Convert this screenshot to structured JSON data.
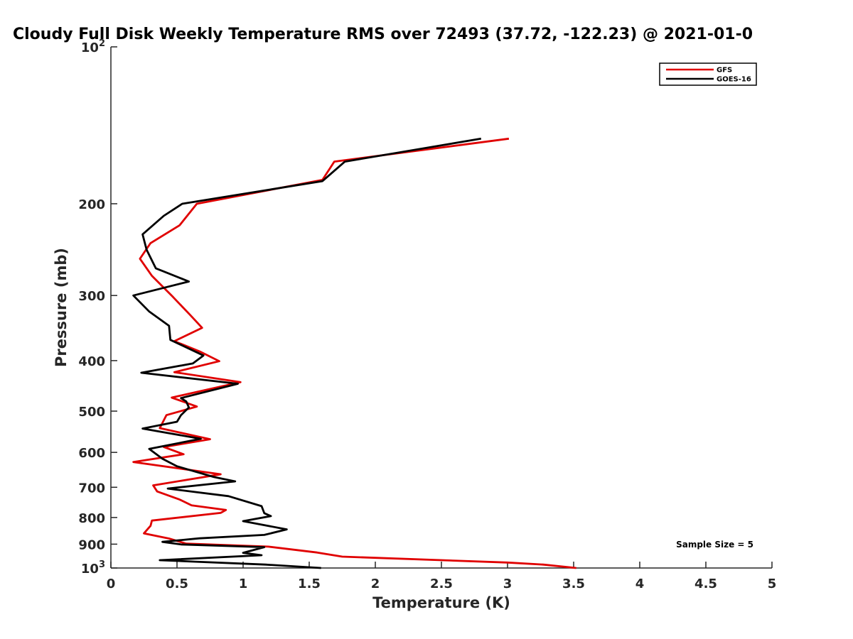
{
  "chart_data": {
    "type": "line",
    "title": "Cloudy Full Disk Weekly Temperature RMS over 72493 (37.72, -122.23) @ 2021-01-0",
    "xlabel": "Temperature (K)",
    "ylabel": "Pressure (mb)",
    "xlim": [
      0,
      5
    ],
    "ylim": [
      100,
      1000
    ],
    "y_scale": "log",
    "y_reversed": true,
    "x_ticks": [
      "0",
      "0.5",
      "1",
      "1.5",
      "2",
      "2.5",
      "3",
      "3.5",
      "4",
      "4.5",
      "5"
    ],
    "y_tick_values": [
      100,
      200,
      300,
      400,
      500,
      600,
      700,
      800,
      900,
      1000
    ],
    "y_ticks": [
      {
        "base": "10",
        "exp": "2"
      },
      {
        "base": "200",
        "exp": ""
      },
      {
        "base": "300",
        "exp": ""
      },
      {
        "base": "400",
        "exp": ""
      },
      {
        "base": "500",
        "exp": ""
      },
      {
        "base": "600",
        "exp": ""
      },
      {
        "base": "700",
        "exp": ""
      },
      {
        "base": "800",
        "exp": ""
      },
      {
        "base": "900",
        "exp": ""
      },
      {
        "base": "10",
        "exp": "3"
      }
    ],
    "grid": false,
    "legend_position": "top-right",
    "annotation": "Sample Size = 5",
    "series": [
      {
        "name": "GFS",
        "color": "#e00000",
        "points": [
          [
            3.01,
            150
          ],
          [
            1.69,
            166
          ],
          [
            1.6,
            180
          ],
          [
            0.65,
            200
          ],
          [
            0.52,
            220
          ],
          [
            0.3,
            238
          ],
          [
            0.22,
            255
          ],
          [
            0.31,
            275
          ],
          [
            0.47,
            302
          ],
          [
            0.6,
            327
          ],
          [
            0.69,
            346
          ],
          [
            0.48,
            367
          ],
          [
            0.68,
            385
          ],
          [
            0.82,
            401
          ],
          [
            0.48,
            421
          ],
          [
            0.98,
            440
          ],
          [
            0.46,
            471
          ],
          [
            0.65,
            490
          ],
          [
            0.42,
            509
          ],
          [
            0.37,
            539
          ],
          [
            0.75,
            566
          ],
          [
            0.4,
            586
          ],
          [
            0.55,
            605
          ],
          [
            0.17,
            626
          ],
          [
            0.83,
            661
          ],
          [
            0.32,
            694
          ],
          [
            0.35,
            713
          ],
          [
            0.52,
            739
          ],
          [
            0.61,
            758
          ],
          [
            0.87,
            774
          ],
          [
            0.83,
            784
          ],
          [
            0.31,
            811
          ],
          [
            0.3,
            830
          ],
          [
            0.25,
            858
          ],
          [
            0.44,
            878
          ],
          [
            0.57,
            898
          ],
          [
            1.19,
            910
          ],
          [
            1.56,
            934
          ],
          [
            1.75,
            951
          ],
          [
            3.0,
            976
          ],
          [
            3.27,
            985
          ],
          [
            3.52,
            1000
          ]
        ]
      },
      {
        "name": "GOES-16",
        "color": "#000000",
        "points": [
          [
            2.8,
            150
          ],
          [
            1.77,
            166
          ],
          [
            1.6,
            181
          ],
          [
            0.54,
            200
          ],
          [
            0.4,
            211
          ],
          [
            0.24,
            229
          ],
          [
            0.27,
            245
          ],
          [
            0.34,
            266
          ],
          [
            0.59,
            282
          ],
          [
            0.17,
            300
          ],
          [
            0.29,
            322
          ],
          [
            0.44,
            343
          ],
          [
            0.45,
            365
          ],
          [
            0.7,
            391
          ],
          [
            0.62,
            405
          ],
          [
            0.23,
            422
          ],
          [
            0.96,
            443
          ],
          [
            0.53,
            472
          ],
          [
            0.57,
            479
          ],
          [
            0.59,
            492
          ],
          [
            0.53,
            509
          ],
          [
            0.5,
            524
          ],
          [
            0.24,
            540
          ],
          [
            0.68,
            565
          ],
          [
            0.29,
            591
          ],
          [
            0.39,
            617
          ],
          [
            0.5,
            638
          ],
          [
            0.78,
            669
          ],
          [
            0.94,
            682
          ],
          [
            0.43,
            704
          ],
          [
            0.89,
            728
          ],
          [
            1.14,
            761
          ],
          [
            1.16,
            785
          ],
          [
            1.21,
            795
          ],
          [
            1.0,
            813
          ],
          [
            1.33,
            843
          ],
          [
            1.16,
            864
          ],
          [
            0.67,
            877
          ],
          [
            0.39,
            891
          ],
          [
            0.53,
            901
          ],
          [
            1.16,
            912
          ],
          [
            1.0,
            935
          ],
          [
            1.14,
            945
          ],
          [
            0.37,
            966
          ],
          [
            1.17,
            985
          ],
          [
            1.59,
            1000
          ]
        ]
      }
    ]
  }
}
